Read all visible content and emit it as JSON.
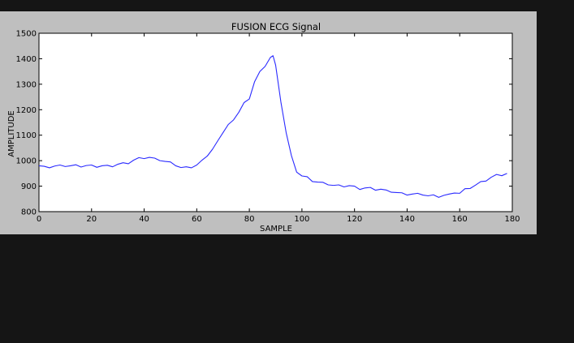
{
  "colors": {
    "window_background": "#151515",
    "figure_background": "#bfbfbf",
    "plot_background": "#ffffff",
    "line": "#2a2aff"
  },
  "chart_data": {
    "type": "line",
    "title": "FUSION ECG Signal",
    "xlabel": "SAMPLE",
    "ylabel": "AMPLITUDE",
    "xlim": [
      0,
      180
    ],
    "ylim": [
      800,
      1500
    ],
    "xticks": [
      0,
      20,
      40,
      60,
      80,
      100,
      120,
      140,
      160,
      180
    ],
    "yticks": [
      800,
      900,
      1000,
      1100,
      1200,
      1300,
      1400,
      1500
    ],
    "grid": false,
    "legend": false,
    "series": [
      {
        "x": [
          0,
          2,
          4,
          6,
          8,
          10,
          12,
          14,
          16,
          18,
          20,
          22,
          24,
          26,
          28,
          30,
          32,
          34,
          36,
          38,
          40,
          42,
          44,
          46,
          48,
          50,
          52,
          54,
          56,
          58,
          60,
          62,
          64,
          66,
          68,
          70,
          72,
          74,
          76,
          78,
          80,
          82,
          84,
          86,
          88,
          89,
          90,
          92,
          94,
          96,
          98,
          100,
          102,
          104,
          106,
          108,
          110,
          112,
          114,
          116,
          118,
          120,
          122,
          124,
          126,
          128,
          130,
          132,
          134,
          136,
          138,
          140,
          142,
          144,
          146,
          148,
          150,
          152,
          154,
          156,
          158,
          160,
          162,
          164,
          166,
          168,
          170,
          172,
          174,
          176,
          178
        ],
        "y": [
          980,
          978,
          972,
          979,
          983,
          977,
          980,
          984,
          975,
          981,
          983,
          974,
          980,
          982,
          976,
          986,
          992,
          988,
          1002,
          1012,
          1008,
          1013,
          1010,
          1000,
          997,
          995,
          980,
          973,
          976,
          972,
          983,
          1002,
          1018,
          1045,
          1078,
          1110,
          1142,
          1160,
          1190,
          1228,
          1242,
          1310,
          1350,
          1370,
          1405,
          1412,
          1375,
          1230,
          1110,
          1020,
          955,
          940,
          937,
          918,
          916,
          915,
          905,
          903,
          905,
          897,
          902,
          900,
          887,
          893,
          895,
          884,
          888,
          885,
          876,
          875,
          874,
          865,
          869,
          872,
          865,
          862,
          866,
          856,
          864,
          869,
          873,
          872,
          890,
          891,
          904,
          918,
          920,
          935,
          946,
          941,
          950
        ]
      }
    ]
  }
}
